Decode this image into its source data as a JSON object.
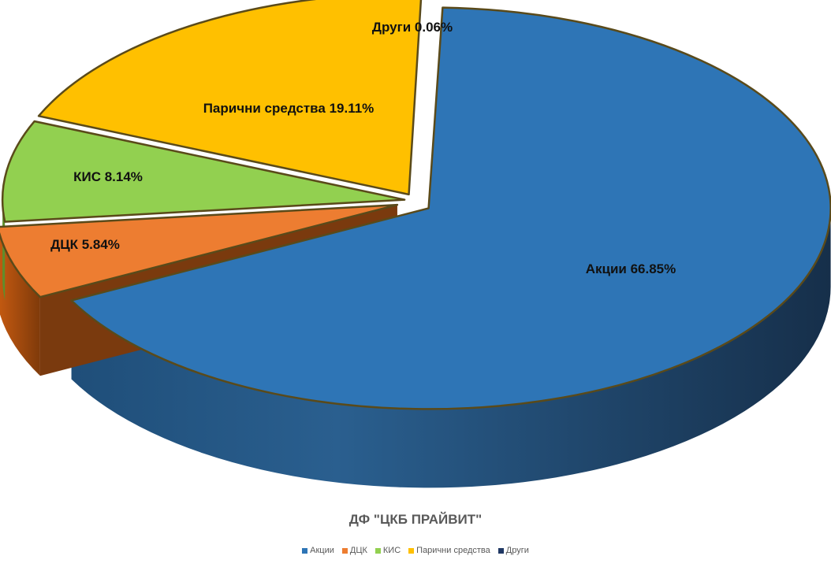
{
  "chart_data": {
    "type": "pie",
    "title": "ДФ \"ЦКБ ПРАЙВИТ\"",
    "categories": [
      "Акции",
      "ДЦК",
      "КИС",
      "Парични средства",
      "Други"
    ],
    "values": [
      66.85,
      5.84,
      8.14,
      19.11,
      0.06
    ],
    "data_labels": [
      "Акции 66.85%",
      "ДЦК 5.84%",
      "КИС 8.14%",
      "Парични средства 19.11%",
      "Други 0.06%"
    ],
    "colors": [
      "#2E75B6",
      "#ED7D31",
      "#92D050",
      "#FFC000",
      "#203864"
    ],
    "legend_position": "bottom",
    "style": "3d-exploded"
  }
}
